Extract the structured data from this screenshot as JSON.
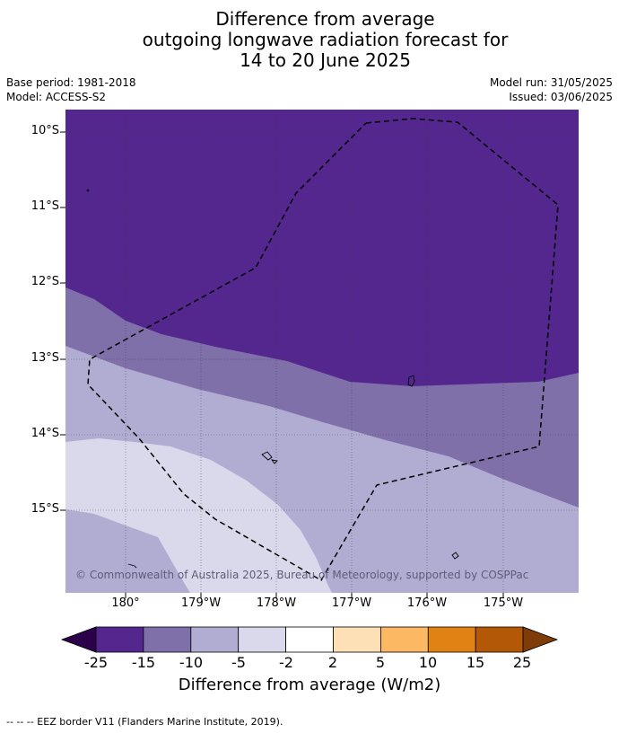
{
  "title": {
    "line1": "Difference from average",
    "line2": "outgoing longwave radiation forecast for",
    "line3": "14 to 20 June 2025"
  },
  "meta": {
    "base_period": "Base period: 1981-2018",
    "model": "Model: ACCESS-S2",
    "model_run": "Model run: 31/05/2025",
    "issued": "Issued: 03/06/2025"
  },
  "map": {
    "lat_labels": [
      "10°S",
      "11°S",
      "12°S",
      "13°S",
      "14°S",
      "15°S"
    ],
    "lon_labels": [
      "180°",
      "179°W",
      "178°W",
      "177°W",
      "176°W",
      "175°W"
    ],
    "credit": "© Commonwealth of Australia 2025, Bureau of Meteorology, supported by COSPPac",
    "zone_colors": {
      "below_-15": "#54278f",
      "-15_to_-10": "#7f70aa",
      "-10_to_-5": "#b1acd2",
      "-5_to_-2": "#d9d9eb"
    },
    "eez_line_color": "#000000"
  },
  "colorbar": {
    "ticks": [
      "-25",
      "-15",
      "-10",
      "-5",
      "-2",
      "2",
      "5",
      "10",
      "15",
      "25"
    ],
    "colors": [
      "#54278f",
      "#7f70aa",
      "#b1acd2",
      "#d9d9eb",
      "#ffffff",
      "#fde0b6",
      "#fdb863",
      "#e08214",
      "#b35806"
    ],
    "under_color": "#2d004b",
    "over_color": "#7f3b08",
    "label": "Difference from average (W/m2)"
  },
  "footer": "--  --  -- EEZ border V11 (Flanders Marine Institute, 2019)."
}
